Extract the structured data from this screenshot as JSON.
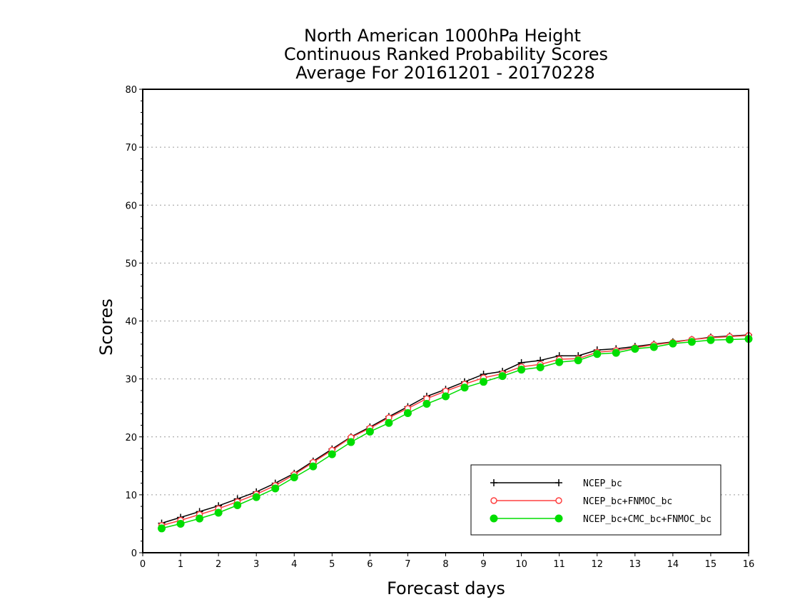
{
  "colors": {
    "background": "#ffffff",
    "axis": "#000000",
    "grid": "#9a9a9a"
  },
  "chart_data": {
    "type": "line",
    "title": [
      "North American 1000hPa Height",
      "Continuous Ranked Probability Scores",
      "Average For 20161201 - 20170228"
    ],
    "xlabel": "Forecast days",
    "ylabel": "Scores",
    "xlim": [
      0,
      16
    ],
    "ylim": [
      0,
      80
    ],
    "x_ticks": [
      "0",
      "1",
      "2",
      "3",
      "4",
      "5",
      "6",
      "7",
      "8",
      "9",
      "10",
      "11",
      "12",
      "13",
      "14",
      "15",
      "16"
    ],
    "y_ticks": [
      "0",
      "10",
      "20",
      "30",
      "40",
      "50",
      "60",
      "70",
      "80"
    ],
    "grid": "horizontal-dotted",
    "legend_position": "bottom-right",
    "x": [
      0.5,
      1,
      1.5,
      2,
      2.5,
      3,
      3.5,
      4,
      4.5,
      5,
      5.5,
      6,
      6.5,
      7,
      7.5,
      8,
      8.5,
      9,
      9.5,
      10,
      10.5,
      11,
      11.5,
      12,
      12.5,
      13,
      13.5,
      14,
      14.5,
      15,
      15.5,
      16
    ],
    "series": [
      {
        "name": "NCEP_bc",
        "color": "#000000",
        "marker": "plus",
        "values": [
          5.1,
          6.1,
          7.1,
          8.1,
          9.3,
          10.5,
          12.0,
          13.7,
          15.8,
          17.9,
          20.0,
          21.7,
          23.5,
          25.2,
          27.0,
          28.2,
          29.5,
          30.8,
          31.3,
          32.8,
          33.2,
          34.0,
          34.0,
          35.0,
          35.2,
          35.6,
          36.0,
          36.4,
          36.8,
          37.2,
          37.4,
          37.6
        ]
      },
      {
        "name": "NCEP_bc+FNMOC_bc",
        "color": "#ff4040",
        "marker": "open-circle",
        "values": [
          4.7,
          5.6,
          6.6,
          7.6,
          8.8,
          10.1,
          11.6,
          13.5,
          15.6,
          17.7,
          19.9,
          21.5,
          23.3,
          24.9,
          26.6,
          27.9,
          29.1,
          30.2,
          30.9,
          32.1,
          32.5,
          33.4,
          33.5,
          34.6,
          34.9,
          35.4,
          35.9,
          36.3,
          36.8,
          37.1,
          37.3,
          37.5
        ]
      },
      {
        "name": "NCEP_bc+CMC_bc+FNMOC_bc",
        "color": "#00dd00",
        "marker": "filled-circle",
        "values": [
          4.2,
          5.0,
          5.9,
          6.9,
          8.2,
          9.6,
          11.1,
          13.0,
          14.9,
          17.0,
          19.1,
          20.9,
          22.4,
          24.1,
          25.7,
          27.0,
          28.5,
          29.5,
          30.5,
          31.6,
          32.0,
          32.9,
          33.2,
          34.3,
          34.5,
          35.2,
          35.5,
          36.1,
          36.4,
          36.7,
          36.8,
          36.9
        ]
      }
    ]
  }
}
